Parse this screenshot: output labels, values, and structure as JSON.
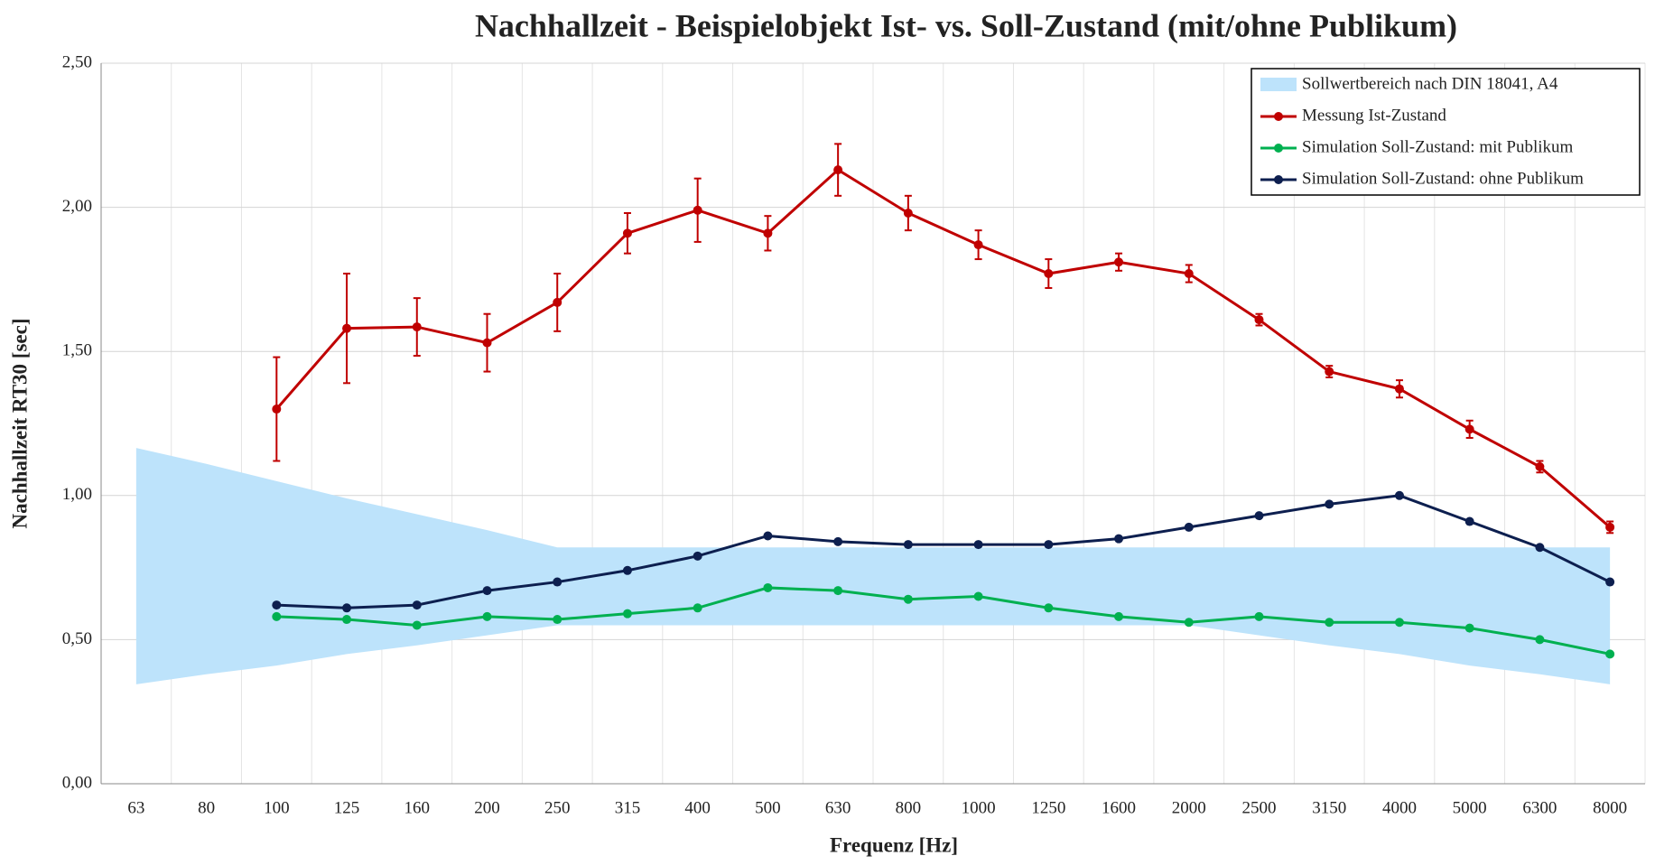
{
  "chart_data": {
    "type": "line",
    "title": "Nachhallzeit - Beispielobjekt Ist- vs. Soll-Zustand (mit/ohne Publikum)",
    "x_label": "Frequenz [Hz]",
    "y_label": "Nachhallzeit RT30 [sec]",
    "categories": [
      "63",
      "80",
      "100",
      "125",
      "160",
      "200",
      "250",
      "315",
      "400",
      "500",
      "630",
      "800",
      "1000",
      "1250",
      "1600",
      "2000",
      "2500",
      "3150",
      "4000",
      "5000",
      "6300",
      "8000"
    ],
    "ylim": [
      0,
      2.5
    ],
    "yticks": [
      {
        "value": 0,
        "label": "0,00"
      },
      {
        "value": 0.5,
        "label": "0,50"
      },
      {
        "value": 1,
        "label": "1,00"
      },
      {
        "value": 1.5,
        "label": "1,50"
      },
      {
        "value": 2,
        "label": "2,00"
      },
      {
        "value": 2.5,
        "label": "2,50"
      }
    ],
    "grid": true,
    "legend": "upper right",
    "band": {
      "name": "Sollwertbereich nach DIN 18041, A4",
      "color": "#bde3fb",
      "lower": [
        0.345,
        0.38,
        0.41,
        0.45,
        0.48,
        0.515,
        0.55,
        0.55,
        0.55,
        0.55,
        0.55,
        0.55,
        0.55,
        0.55,
        0.55,
        0.55,
        0.515,
        0.48,
        0.45,
        0.41,
        0.38,
        0.345
      ],
      "upper": [
        1.165,
        1.11,
        1.05,
        0.99,
        0.935,
        0.88,
        0.82,
        0.82,
        0.82,
        0.82,
        0.82,
        0.82,
        0.82,
        0.82,
        0.82,
        0.82,
        0.82,
        0.82,
        0.82,
        0.82,
        0.82,
        0.82
      ]
    },
    "series": [
      {
        "name": "Messung Ist-Zustand",
        "color": "#c00000",
        "values": [
          null,
          null,
          1.3,
          1.58,
          1.585,
          1.53,
          1.67,
          1.91,
          1.99,
          1.91,
          2.13,
          1.98,
          1.87,
          1.77,
          1.81,
          1.77,
          1.61,
          1.43,
          1.37,
          1.23,
          1.1,
          0.89
        ],
        "errors": [
          null,
          null,
          0.18,
          0.19,
          0.1,
          0.1,
          0.1,
          0.07,
          0.11,
          0.06,
          0.09,
          0.06,
          0.05,
          0.05,
          0.03,
          0.03,
          0.02,
          0.02,
          0.03,
          0.03,
          0.02,
          0.02
        ]
      },
      {
        "name": "Simulation Soll-Zustand: mit Publikum",
        "color": "#00b050",
        "values": [
          null,
          null,
          0.58,
          0.57,
          0.55,
          0.58,
          0.57,
          0.59,
          0.61,
          0.68,
          0.67,
          0.64,
          0.65,
          0.61,
          0.58,
          0.56,
          0.58,
          0.56,
          0.56,
          0.54,
          0.5,
          0.45
        ]
      },
      {
        "name": "Simulation Soll-Zustand: ohne Publikum",
        "color": "#0d1f4f",
        "values": [
          null,
          null,
          0.62,
          0.61,
          0.62,
          0.67,
          0.7,
          0.74,
          0.79,
          0.86,
          0.84,
          0.83,
          0.83,
          0.83,
          0.85,
          0.89,
          0.93,
          0.97,
          1.0,
          0.91,
          0.82,
          0.7
        ]
      }
    ]
  }
}
